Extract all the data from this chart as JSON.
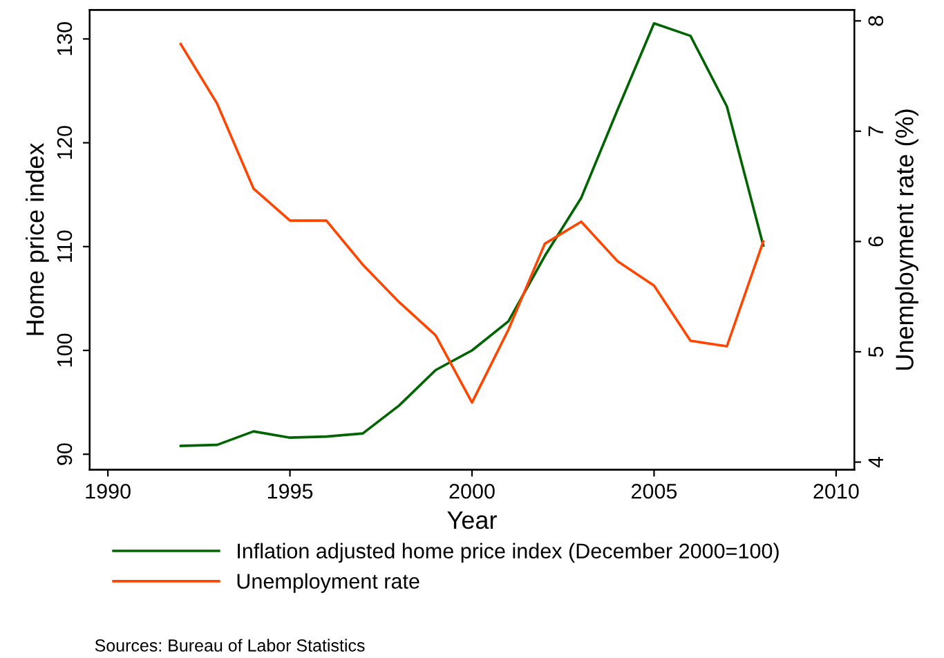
{
  "chart_data": {
    "type": "line",
    "xlabel": "Year",
    "ylabel": "Home price index",
    "y2label": "Unemployment rate (%)",
    "x": [
      1992,
      1993,
      1994,
      1995,
      1996,
      1997,
      1998,
      1999,
      2000,
      2001,
      2002,
      2003,
      2004,
      2005,
      2006,
      2007,
      2008
    ],
    "series": [
      {
        "name": "Inflation adjusted home price index (December 2000=100)",
        "color": "#006400",
        "values": [
          90.8,
          90.9,
          92.2,
          91.6,
          91.7,
          92.0,
          94.7,
          98.1,
          100,
          102.8,
          109.1,
          114.7,
          123.2,
          131.5,
          130.3,
          123.5,
          110.1
        ]
      },
      {
        "name": "Unemployment rate",
        "color": "#ff4500",
        "axis": "y2",
        "values": [
          7.79,
          7.25,
          6.48,
          6.19,
          6.19,
          5.79,
          5.45,
          5.15,
          4.54,
          5.2,
          5.98,
          6.18,
          5.82,
          5.6,
          5.1,
          5.05,
          6.0
        ]
      }
    ],
    "xlim": [
      1989.5,
      2010.5
    ],
    "xticks": [
      1990,
      1995,
      2000,
      2005,
      2010
    ],
    "ylim": [
      88.5,
      132.8
    ],
    "yticks": [
      90,
      100,
      110,
      120,
      130
    ],
    "y2lim": [
      3.93,
      8.1
    ],
    "y2ticks": [
      4,
      5,
      6,
      7,
      8
    ],
    "grid": false,
    "legend": "bottom",
    "marker": "none",
    "line_style": "solid",
    "annotations": [
      "Sources: Bureau of Labor Statistics"
    ]
  }
}
